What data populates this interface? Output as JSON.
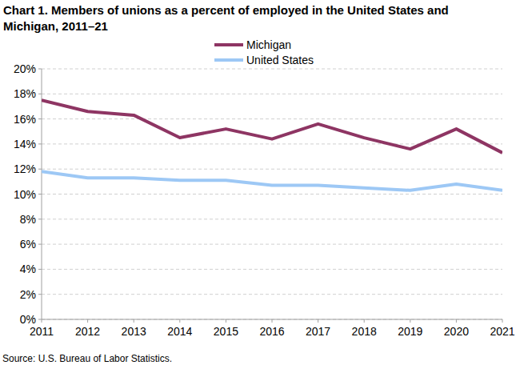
{
  "chart_data": {
    "type": "line",
    "title": "Chart 1. Members of unions as a percent of employed in the United States and Michigan, 2011–21",
    "source": "Source: U.S. Bureau of Labor Statistics.",
    "x": [
      2011,
      2012,
      2013,
      2014,
      2015,
      2016,
      2017,
      2018,
      2019,
      2020,
      2021
    ],
    "series": [
      {
        "name": "Michigan",
        "color": "#8e3563",
        "values": [
          17.5,
          16.6,
          16.3,
          14.5,
          15.2,
          14.4,
          15.6,
          14.5,
          13.6,
          15.2,
          13.3
        ]
      },
      {
        "name": "United States",
        "color": "#9dc8f5",
        "values": [
          11.8,
          11.3,
          11.3,
          11.1,
          11.1,
          10.7,
          10.7,
          10.5,
          10.3,
          10.8,
          10.3
        ]
      }
    ],
    "xlim": [
      2011,
      2021
    ],
    "xticks": [
      2011,
      2012,
      2013,
      2014,
      2015,
      2016,
      2017,
      2018,
      2019,
      2020,
      2021
    ],
    "ylim": [
      0,
      20
    ],
    "yticks": [
      {
        "value": 0,
        "label": "0%"
      },
      {
        "value": 2,
        "label": "2%"
      },
      {
        "value": 4,
        "label": "4%"
      },
      {
        "value": 6,
        "label": "6%"
      },
      {
        "value": 8,
        "label": "8%"
      },
      {
        "value": 10,
        "label": "10%"
      },
      {
        "value": 12,
        "label": "12%"
      },
      {
        "value": 14,
        "label": "14%"
      },
      {
        "value": 16,
        "label": "16%"
      },
      {
        "value": 18,
        "label": "18%"
      },
      {
        "value": 20,
        "label": "20%"
      }
    ],
    "grid": true,
    "legend": "top"
  }
}
